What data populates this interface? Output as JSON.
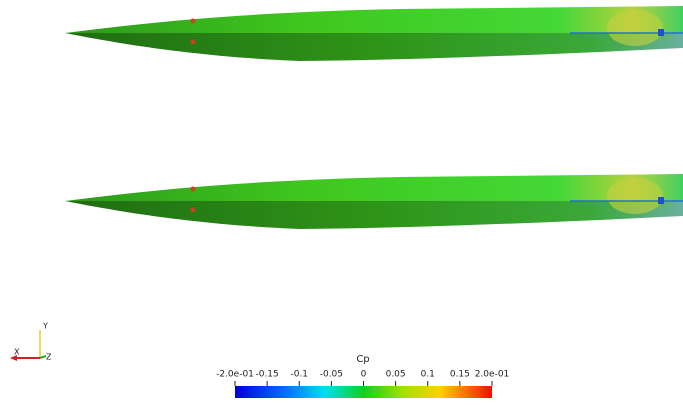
{
  "axes_triad": {
    "x": "X",
    "y": "Y",
    "z": "Z"
  },
  "colorbar": {
    "title": "Cp",
    "range": [
      -0.2,
      0.2
    ],
    "ticks": [
      {
        "value": -0.2,
        "label": "-2.0e-01"
      },
      -0.15,
      -0.1,
      -0.05,
      0,
      0.05,
      0.1,
      0.15,
      {
        "value": 0.2,
        "label": "2.0e-01"
      }
    ]
  }
}
